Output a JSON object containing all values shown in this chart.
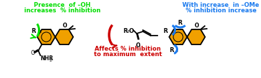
{
  "fig_width": 3.78,
  "fig_height": 1.15,
  "dpi": 100,
  "bg_color": "#ffffff",
  "green_text_1": "Presence  of –OH",
  "green_text_2": "increases  % inhibition",
  "green_color": "#00dd00",
  "blue_text_1": "With increase  in –OMe",
  "blue_text_2": "% inhibition increase",
  "blue_color": "#1a7aee",
  "red_text_1": "Affects % inhibition",
  "red_text_2": "to maximum  extent",
  "red_color": "#cc0000",
  "annotation_fontsize": 6.2,
  "annotation_fontweight": "bold",
  "mol_color": "#f0a000",
  "mol_outline": "#000000",
  "lw": 1.3
}
